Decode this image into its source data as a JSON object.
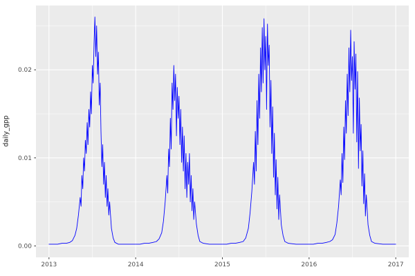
{
  "chart_data": {
    "type": "line",
    "title": "",
    "xlabel": "",
    "ylabel": "daily_gpp",
    "legend_position": "none",
    "grid": "on",
    "xlim": [
      2012.85,
      2017.15
    ],
    "ylim": [
      -0.0013,
      0.0273
    ],
    "x_ticks": [
      {
        "value": 2013,
        "label": "2013"
      },
      {
        "value": 2014,
        "label": "2014"
      },
      {
        "value": 2015,
        "label": "2015"
      },
      {
        "value": 2016,
        "label": "2016"
      },
      {
        "value": 2017,
        "label": "2017"
      }
    ],
    "y_ticks": [
      {
        "value": 0.0,
        "label": "0.00"
      },
      {
        "value": 0.01,
        "label": "0.01"
      },
      {
        "value": 0.02,
        "label": "0.02"
      }
    ],
    "x_minor_gridlines": [
      2013.5,
      2014.5,
      2015.5,
      2016.5
    ],
    "y_minor_gridlines": [
      0.005,
      0.015,
      0.025
    ],
    "theme": {
      "panel_background": "#ebebeb",
      "grid_color": "#ffffff",
      "tick_label_color": "#4d4d4d",
      "tick_mark_color": "#333333",
      "axis_title_color": "#1a1a1a"
    },
    "series": [
      {
        "name": "daily_gpp",
        "color": "#0000ff",
        "points": [
          [
            2013.0,
            0.0002
          ],
          [
            2013.05,
            0.0002
          ],
          [
            2013.1,
            0.0002
          ],
          [
            2013.15,
            0.0003
          ],
          [
            2013.2,
            0.0003
          ],
          [
            2013.24,
            0.0004
          ],
          [
            2013.27,
            0.0006
          ],
          [
            2013.3,
            0.0012
          ],
          [
            2013.32,
            0.002
          ],
          [
            2013.34,
            0.0035
          ],
          [
            2013.36,
            0.0055
          ],
          [
            2013.37,
            0.0045
          ],
          [
            2013.38,
            0.008
          ],
          [
            2013.39,
            0.0065
          ],
          [
            2013.4,
            0.01
          ],
          [
            2013.41,
            0.0085
          ],
          [
            2013.42,
            0.012
          ],
          [
            2013.43,
            0.0105
          ],
          [
            2013.44,
            0.014
          ],
          [
            2013.45,
            0.0115
          ],
          [
            2013.46,
            0.0155
          ],
          [
            2013.47,
            0.0135
          ],
          [
            2013.48,
            0.0175
          ],
          [
            2013.49,
            0.015
          ],
          [
            2013.5,
            0.0205
          ],
          [
            2013.51,
            0.0185
          ],
          [
            2013.52,
            0.023
          ],
          [
            2013.53,
            0.026
          ],
          [
            2013.54,
            0.0215
          ],
          [
            2013.55,
            0.025
          ],
          [
            2013.56,
            0.0195
          ],
          [
            2013.57,
            0.022
          ],
          [
            2013.58,
            0.016
          ],
          [
            2013.59,
            0.0185
          ],
          [
            2013.6,
            0.013
          ],
          [
            2013.61,
            0.009
          ],
          [
            2013.62,
            0.0115
          ],
          [
            2013.63,
            0.007
          ],
          [
            2013.64,
            0.0095
          ],
          [
            2013.65,
            0.0055
          ],
          [
            2013.66,
            0.008
          ],
          [
            2013.67,
            0.0045
          ],
          [
            2013.68,
            0.0065
          ],
          [
            2013.69,
            0.0035
          ],
          [
            2013.7,
            0.005
          ],
          [
            2013.72,
            0.002
          ],
          [
            2013.74,
            0.0009
          ],
          [
            2013.76,
            0.0004
          ],
          [
            2013.8,
            0.0002
          ],
          [
            2013.85,
            0.0002
          ],
          [
            2013.9,
            0.0002
          ],
          [
            2013.95,
            0.0002
          ],
          [
            2014.0,
            0.0002
          ],
          [
            2014.05,
            0.0002
          ],
          [
            2014.1,
            0.0003
          ],
          [
            2014.15,
            0.0003
          ],
          [
            2014.2,
            0.0004
          ],
          [
            2014.24,
            0.0005
          ],
          [
            2014.27,
            0.0008
          ],
          [
            2014.3,
            0.0015
          ],
          [
            2014.32,
            0.0028
          ],
          [
            2014.34,
            0.005
          ],
          [
            2014.36,
            0.008
          ],
          [
            2014.37,
            0.006
          ],
          [
            2014.38,
            0.011
          ],
          [
            2014.39,
            0.009
          ],
          [
            2014.4,
            0.0145
          ],
          [
            2014.41,
            0.011
          ],
          [
            2014.42,
            0.0185
          ],
          [
            2014.43,
            0.0155
          ],
          [
            2014.44,
            0.0205
          ],
          [
            2014.45,
            0.0165
          ],
          [
            2014.46,
            0.0195
          ],
          [
            2014.47,
            0.0125
          ],
          [
            2014.48,
            0.018
          ],
          [
            2014.49,
            0.0145
          ],
          [
            2014.5,
            0.017
          ],
          [
            2014.51,
            0.0115
          ],
          [
            2014.52,
            0.0155
          ],
          [
            2014.53,
            0.0095
          ],
          [
            2014.54,
            0.0135
          ],
          [
            2014.55,
            0.0085
          ],
          [
            2014.56,
            0.0125
          ],
          [
            2014.57,
            0.0065
          ],
          [
            2014.58,
            0.0105
          ],
          [
            2014.59,
            0.0055
          ],
          [
            2014.6,
            0.0095
          ],
          [
            2014.61,
            0.007
          ],
          [
            2014.62,
            0.0105
          ],
          [
            2014.63,
            0.005
          ],
          [
            2014.64,
            0.008
          ],
          [
            2014.65,
            0.004
          ],
          [
            2014.66,
            0.0065
          ],
          [
            2014.67,
            0.003
          ],
          [
            2014.68,
            0.005
          ],
          [
            2014.7,
            0.0025
          ],
          [
            2014.72,
            0.0012
          ],
          [
            2014.74,
            0.0005
          ],
          [
            2014.78,
            0.0003
          ],
          [
            2014.85,
            0.0002
          ],
          [
            2014.9,
            0.0002
          ],
          [
            2014.95,
            0.0002
          ],
          [
            2015.0,
            0.0002
          ],
          [
            2015.05,
            0.0002
          ],
          [
            2015.1,
            0.0003
          ],
          [
            2015.15,
            0.0003
          ],
          [
            2015.2,
            0.0004
          ],
          [
            2015.24,
            0.0005
          ],
          [
            2015.27,
            0.0009
          ],
          [
            2015.3,
            0.002
          ],
          [
            2015.32,
            0.0038
          ],
          [
            2015.34,
            0.0062
          ],
          [
            2015.36,
            0.0095
          ],
          [
            2015.37,
            0.007
          ],
          [
            2015.38,
            0.013
          ],
          [
            2015.39,
            0.0085
          ],
          [
            2015.4,
            0.0165
          ],
          [
            2015.41,
            0.0115
          ],
          [
            2015.42,
            0.0195
          ],
          [
            2015.43,
            0.0145
          ],
          [
            2015.44,
            0.0225
          ],
          [
            2015.45,
            0.0175
          ],
          [
            2015.46,
            0.0248
          ],
          [
            2015.47,
            0.0185
          ],
          [
            2015.48,
            0.0258
          ],
          [
            2015.49,
            0.02
          ],
          [
            2015.5,
            0.0238
          ],
          [
            2015.51,
            0.0155
          ],
          [
            2015.52,
            0.0252
          ],
          [
            2015.53,
            0.0205
          ],
          [
            2015.54,
            0.0228
          ],
          [
            2015.55,
            0.0135
          ],
          [
            2015.56,
            0.0188
          ],
          [
            2015.57,
            0.0105
          ],
          [
            2015.58,
            0.0158
          ],
          [
            2015.59,
            0.0078
          ],
          [
            2015.6,
            0.0128
          ],
          [
            2015.61,
            0.0058
          ],
          [
            2015.62,
            0.0098
          ],
          [
            2015.63,
            0.0042
          ],
          [
            2015.64,
            0.0078
          ],
          [
            2015.65,
            0.003
          ],
          [
            2015.66,
            0.0058
          ],
          [
            2015.68,
            0.0024
          ],
          [
            2015.7,
            0.0012
          ],
          [
            2015.72,
            0.0005
          ],
          [
            2015.76,
            0.0003
          ],
          [
            2015.85,
            0.0002
          ],
          [
            2015.9,
            0.0002
          ],
          [
            2015.95,
            0.0002
          ],
          [
            2016.0,
            0.0002
          ],
          [
            2016.05,
            0.0002
          ],
          [
            2016.1,
            0.0003
          ],
          [
            2016.15,
            0.0003
          ],
          [
            2016.2,
            0.0004
          ],
          [
            2016.24,
            0.0005
          ],
          [
            2016.27,
            0.0007
          ],
          [
            2016.3,
            0.0013
          ],
          [
            2016.32,
            0.0026
          ],
          [
            2016.34,
            0.0045
          ],
          [
            2016.36,
            0.0075
          ],
          [
            2016.37,
            0.0058
          ],
          [
            2016.38,
            0.0105
          ],
          [
            2016.39,
            0.0072
          ],
          [
            2016.4,
            0.0135
          ],
          [
            2016.41,
            0.0098
          ],
          [
            2016.42,
            0.0165
          ],
          [
            2016.43,
            0.0128
          ],
          [
            2016.44,
            0.0195
          ],
          [
            2016.45,
            0.0148
          ],
          [
            2016.46,
            0.0225
          ],
          [
            2016.47,
            0.0175
          ],
          [
            2016.48,
            0.0245
          ],
          [
            2016.49,
            0.0188
          ],
          [
            2016.5,
            0.0215
          ],
          [
            2016.51,
            0.0128
          ],
          [
            2016.52,
            0.0232
          ],
          [
            2016.53,
            0.0178
          ],
          [
            2016.54,
            0.0218
          ],
          [
            2016.55,
            0.0118
          ],
          [
            2016.56,
            0.0198
          ],
          [
            2016.57,
            0.0088
          ],
          [
            2016.58,
            0.0168
          ],
          [
            2016.59,
            0.0108
          ],
          [
            2016.6,
            0.0138
          ],
          [
            2016.61,
            0.0068
          ],
          [
            2016.62,
            0.0108
          ],
          [
            2016.63,
            0.0048
          ],
          [
            2016.64,
            0.0082
          ],
          [
            2016.65,
            0.0034
          ],
          [
            2016.66,
            0.0058
          ],
          [
            2016.68,
            0.0024
          ],
          [
            2016.7,
            0.0012
          ],
          [
            2016.72,
            0.0005
          ],
          [
            2016.76,
            0.0003
          ],
          [
            2016.85,
            0.0002
          ],
          [
            2016.9,
            0.0002
          ],
          [
            2016.95,
            0.0002
          ],
          [
            2017.0,
            0.0002
          ]
        ]
      }
    ]
  }
}
